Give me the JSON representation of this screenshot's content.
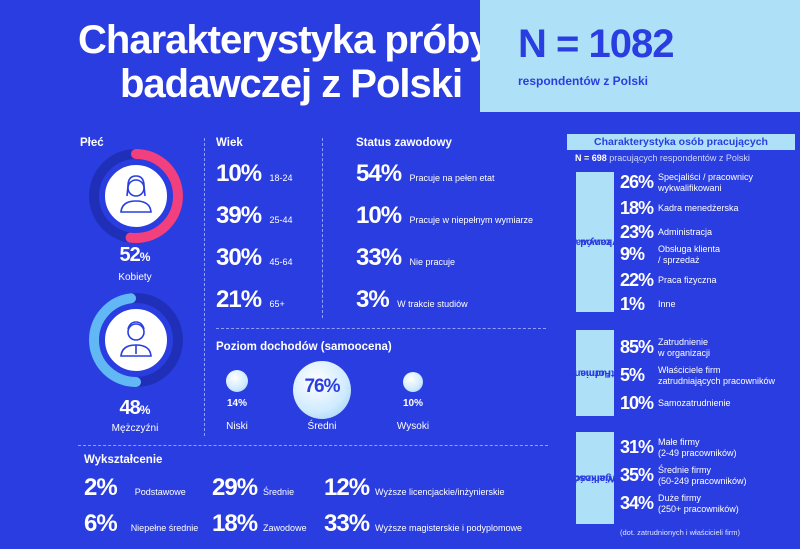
{
  "title": {
    "line1": "Charakterystyka próby",
    "line2": "badawczej z Polski"
  },
  "sample": {
    "n": "N = 1082",
    "sub": "respondentów z Polski"
  },
  "gender": {
    "heading": "Płeć",
    "women": {
      "pct": "52",
      "sign": "%",
      "label": "Kobiety",
      "value": 52,
      "color": "#f2407f"
    },
    "men": {
      "pct": "48",
      "sign": "%",
      "label": "Mężczyźni",
      "value": 48,
      "color": "#62b8f5"
    },
    "woman_icon": "woman-icon",
    "man_icon": "man-icon"
  },
  "age": {
    "heading": "Wiek",
    "items": [
      {
        "pct": "10%",
        "label": "18-24"
      },
      {
        "pct": "39%",
        "label": "25-44"
      },
      {
        "pct": "30%",
        "label": "45-64"
      },
      {
        "pct": "21%",
        "label": "65+"
      }
    ]
  },
  "status": {
    "heading": "Status zawodowy",
    "items": [
      {
        "pct": "54%",
        "label": "Pracuje na pełen etat"
      },
      {
        "pct": "10%",
        "label": "Pracuje w niepełnym wymiarze"
      },
      {
        "pct": "33%",
        "label": "Nie pracuje"
      },
      {
        "pct": "3%",
        "label": "W trakcie studiów"
      }
    ]
  },
  "income": {
    "heading": "Poziom dochodów (samoocena)",
    "items": [
      {
        "pct": "14%",
        "label": "Niski"
      },
      {
        "pct": "76%",
        "label": "Średni"
      },
      {
        "pct": "10%",
        "label": "Wysoki"
      }
    ]
  },
  "education": {
    "heading": "Wykształcenie",
    "items": [
      {
        "pct": "2%",
        "label": "Podstawowe"
      },
      {
        "pct": "29%",
        "label": "Średnie"
      },
      {
        "pct": "12%",
        "label": "Wyższe licencjackie/inżynierskie"
      },
      {
        "pct": "6%",
        "label": "Niepełne średnie"
      },
      {
        "pct": "18%",
        "label": "Zawodowe"
      },
      {
        "pct": "33%",
        "label": "Wyższe magisterskie i podyplomowe"
      }
    ]
  },
  "workers": {
    "heading": "Charakterystyka osób pracujących",
    "sub_n": "N = 698",
    "sub_text": "pracujących respondentów z Polski",
    "occupation": {
      "tab": [
        "Wykonywany",
        "zawód"
      ],
      "items": [
        {
          "pct": "26%",
          "label": [
            "Specjaliści / pracownicy",
            "wykwalifikowani"
          ]
        },
        {
          "pct": "18%",
          "label": [
            "Kadra menedżerska"
          ]
        },
        {
          "pct": "23%",
          "label": [
            "Administracja"
          ]
        },
        {
          "pct": "9%",
          "label": [
            "Obsługa klienta",
            "/ sprzedaż"
          ]
        },
        {
          "pct": "22%",
          "label": [
            "Praca fizyczna"
          ]
        },
        {
          "pct": "1%",
          "label": [
            "Inne"
          ]
        }
      ]
    },
    "employment": {
      "tab": [
        "Forma",
        "zatrudnienia"
      ],
      "items": [
        {
          "pct": "85%",
          "label": [
            "Zatrudnienie",
            "w organizacji"
          ]
        },
        {
          "pct": "5%",
          "label": [
            "Właściciele firm",
            "zatrudniających pracowników"
          ]
        },
        {
          "pct": "10%",
          "label": [
            "Samozatrudnienie"
          ]
        }
      ]
    },
    "org_size": {
      "tab": [
        "Wielkość",
        "organizacji"
      ],
      "items": [
        {
          "pct": "31%",
          "label": [
            "Małe firmy",
            "(2-49 pracowników)"
          ]
        },
        {
          "pct": "35%",
          "label": [
            "Średnie firmy",
            "(50-249 pracowników)"
          ]
        },
        {
          "pct": "34%",
          "label": [
            "Duże firmy",
            "(250+ pracowników)"
          ]
        }
      ],
      "note": "(dot. zatrudnionych i właścicieli firm)"
    }
  }
}
